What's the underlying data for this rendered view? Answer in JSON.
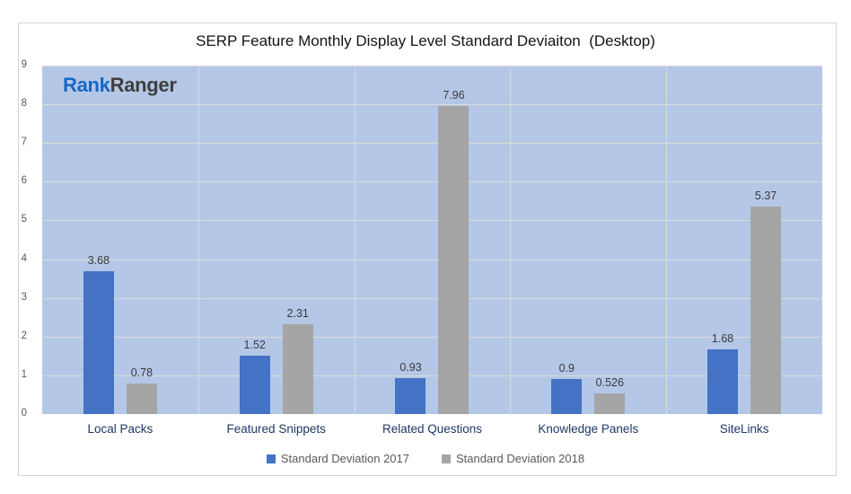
{
  "chart": {
    "title": "SERP Feature Monthly Display Level Standard Deviaiton  (Desktop)",
    "logo": {
      "part1": "Rank",
      "part2": "Ranger"
    }
  },
  "colors": {
    "series_2017": "#4472C4",
    "series_2018": "#A5A5A5",
    "plot_background": "#B4C7E7",
    "gridline": "#DBDBD6",
    "category_label": "#1F3864",
    "tick_label": "#595959",
    "data_label": "#3A3A3A",
    "legend_text": "#595959",
    "frame_border": "#D4D4D4",
    "logo_blue": "#1767C4",
    "logo_dark": "#3E3E3E",
    "title_color": "#141414"
  },
  "chart_data": {
    "type": "bar",
    "title": "SERP Feature Monthly Display Level Standard Deviaiton  (Desktop)",
    "categories": [
      "Local Packs",
      "Featured Snippets",
      "Related Questions",
      "Knowledge Panels",
      "SiteLinks"
    ],
    "series": [
      {
        "name": "Standard Deviation 2017",
        "color": "#4472C4",
        "values": [
          3.68,
          1.52,
          0.93,
          0.9,
          1.68
        ]
      },
      {
        "name": "Standard Deviation 2018",
        "color": "#A5A5A5",
        "values": [
          0.78,
          2.31,
          7.96,
          0.526,
          5.37
        ]
      }
    ],
    "xlabel": "",
    "ylabel": "",
    "ylim": [
      0,
      9
    ],
    "ytick_step": 1,
    "grid": true,
    "legend_position": "bottom"
  }
}
